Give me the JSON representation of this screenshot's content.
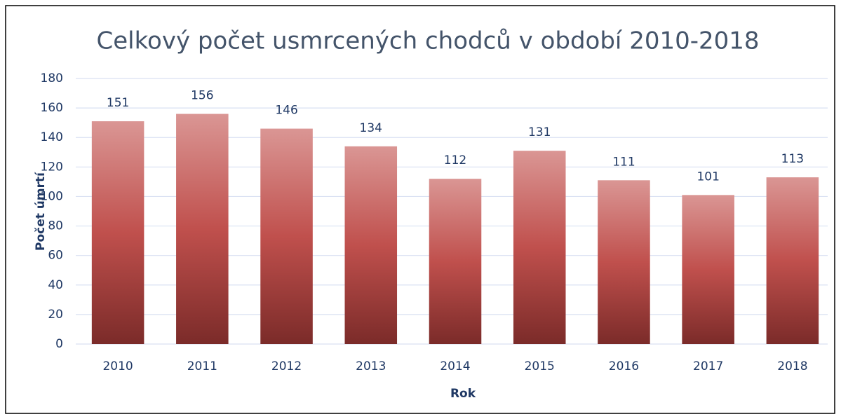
{
  "chart_data": {
    "type": "bar",
    "title": "Celkový počet usmrcených chodců v období 2010-2018",
    "x_label": "Rok",
    "y_label": "Počet úmrtí",
    "categories": [
      "2010",
      "2011",
      "2012",
      "2013",
      "2014",
      "2015",
      "2016",
      "2017",
      "2018"
    ],
    "values": [
      151,
      156,
      146,
      134,
      112,
      131,
      111,
      101,
      113
    ],
    "color": "#c0504d",
    "ylim": [
      0,
      180
    ],
    "yticks": [
      0,
      20,
      40,
      60,
      80,
      100,
      120,
      140,
      160,
      180
    ],
    "grid": true
  }
}
